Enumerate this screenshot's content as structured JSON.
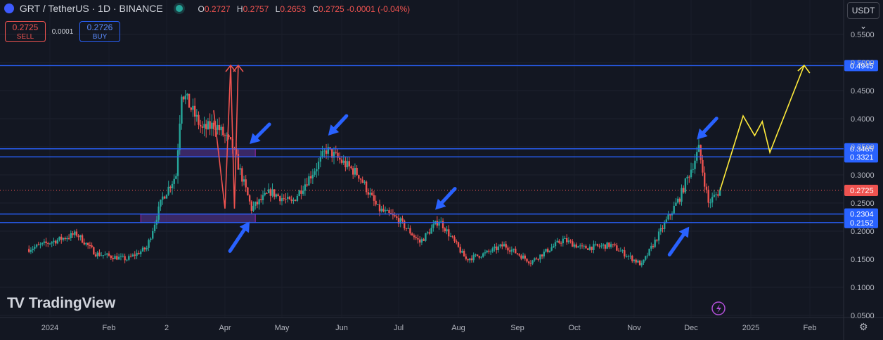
{
  "header": {
    "symbol": "GRT / TetherUS · 1D · BINANCE",
    "ohlc": {
      "o_label": "O",
      "o": "0.2727",
      "h_label": "H",
      "h": "0.2757",
      "l_label": "L",
      "l": "0.2653",
      "c_label": "C",
      "c": "0.2725",
      "change": "-0.0001 (-0.04%)"
    }
  },
  "trade": {
    "sell_price": "0.2725",
    "sell_label": "SELL",
    "spread": "0.0001",
    "buy_price": "0.2726",
    "buy_label": "BUY"
  },
  "currency_button": "USDT",
  "watermark": "TradingView",
  "colors": {
    "up": "#26a69a",
    "down": "#ef5350",
    "level_line": "#2962ff",
    "yellow_path": "#ffeb3b",
    "red_path": "#ef5350",
    "arrow": "#2962ff",
    "zone": "#6a3fb8"
  },
  "chart_data": {
    "type": "candlestick",
    "symbol": "GRT/USDT",
    "interval": "1D",
    "yaxis": {
      "min": 0.05,
      "max": 0.55,
      "ticks": [
        0.55,
        0.5,
        0.45,
        0.4,
        0.35,
        0.3,
        0.25,
        0.2,
        0.15,
        0.1,
        0.05
      ]
    },
    "xaxis": {
      "labels": [
        "2024",
        "Feb",
        "2",
        "Apr",
        "May",
        "Jun",
        "Jul",
        "Aug",
        "Sep",
        "Oct",
        "Nov",
        "Dec",
        "2025",
        "Feb"
      ]
    },
    "last_price": 0.2725,
    "price_levels": [
      0.4945,
      0.3465,
      0.3321,
      0.2304,
      0.2152
    ],
    "price_path": [
      {
        "date": "2024-01-01",
        "price": 0.18
      },
      {
        "date": "2024-01-15",
        "price": 0.195
      },
      {
        "date": "2024-01-25",
        "price": 0.16
      },
      {
        "date": "2024-02-10",
        "price": 0.15
      },
      {
        "date": "2024-02-20",
        "price": 0.17
      },
      {
        "date": "2024-02-28",
        "price": 0.26
      },
      {
        "date": "2024-03-06",
        "price": 0.3
      },
      {
        "date": "2024-03-09",
        "price": 0.45
      },
      {
        "date": "2024-03-20",
        "price": 0.38
      },
      {
        "date": "2024-03-27",
        "price": 0.39
      },
      {
        "date": "2024-04-05",
        "price": 0.35
      },
      {
        "date": "2024-04-15",
        "price": 0.24
      },
      {
        "date": "2024-04-25",
        "price": 0.27
      },
      {
        "date": "2024-05-06",
        "price": 0.25
      },
      {
        "date": "2024-05-20",
        "price": 0.32
      },
      {
        "date": "2024-05-24",
        "price": 0.345
      },
      {
        "date": "2024-06-10",
        "price": 0.3
      },
      {
        "date": "2024-06-20",
        "price": 0.24
      },
      {
        "date": "2024-07-01",
        "price": 0.22
      },
      {
        "date": "2024-07-12",
        "price": 0.18
      },
      {
        "date": "2024-07-22",
        "price": 0.22
      },
      {
        "date": "2024-08-05",
        "price": 0.15
      },
      {
        "date": "2024-08-15",
        "price": 0.16
      },
      {
        "date": "2024-08-25",
        "price": 0.175
      },
      {
        "date": "2024-09-08",
        "price": 0.145
      },
      {
        "date": "2024-09-25",
        "price": 0.185
      },
      {
        "date": "2024-10-05",
        "price": 0.17
      },
      {
        "date": "2024-10-20",
        "price": 0.175
      },
      {
        "date": "2024-11-05",
        "price": 0.14
      },
      {
        "date": "2024-11-15",
        "price": 0.2
      },
      {
        "date": "2024-11-25",
        "price": 0.26
      },
      {
        "date": "2024-12-05",
        "price": 0.345
      },
      {
        "date": "2024-12-10",
        "price": 0.25
      },
      {
        "date": "2024-12-16",
        "price": 0.2725
      }
    ],
    "projection": [
      {
        "date": "2024-12-16",
        "price": 0.2725
      },
      {
        "date": "2024-12-28",
        "price": 0.405
      },
      {
        "date": "2025-01-03",
        "price": 0.37
      },
      {
        "date": "2025-01-07",
        "price": 0.395
      },
      {
        "date": "2025-01-11",
        "price": 0.34
      },
      {
        "date": "2025-01-29",
        "price": 0.495
      }
    ]
  }
}
